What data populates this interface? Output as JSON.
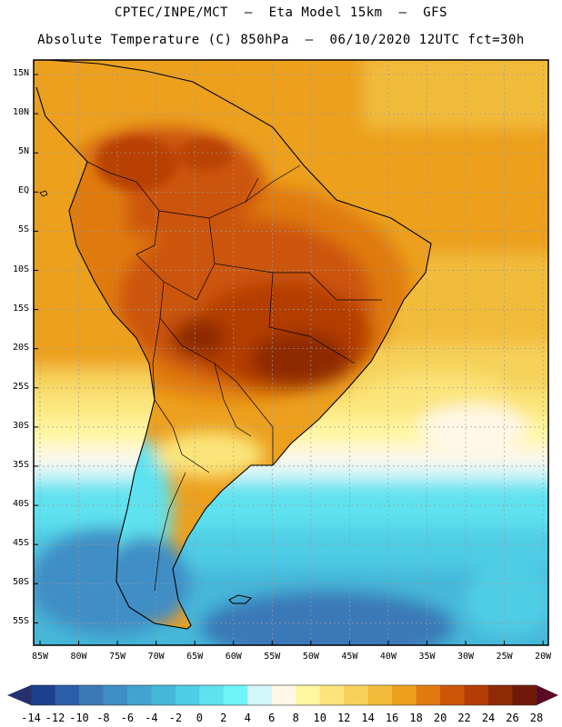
{
  "header": {
    "line1": "CPTEC/INPE/MCT  –  Eta Model 15km  –  GFS",
    "line2": "Absolute Temperature (C) 850hPa  –  06/10/2020 12UTC fct=30h"
  },
  "map": {
    "lat_labels": [
      "15N",
      "10N",
      "5N",
      "EQ",
      "5S",
      "10S",
      "15S",
      "20S",
      "25S",
      "30S",
      "35S",
      "40S",
      "45S",
      "50S",
      "55S"
    ],
    "lon_labels": [
      "85W",
      "80W",
      "75W",
      "70W",
      "65W",
      "60W",
      "55W",
      "50W",
      "45W",
      "40W",
      "35W",
      "30W",
      "25W",
      "20W"
    ],
    "grid": "dotted",
    "lat_range": [
      "16N",
      "57S"
    ],
    "lon_range": [
      "86W",
      "19W"
    ]
  },
  "colorbar": {
    "labels": [
      "-14",
      "-12",
      "-10",
      "-8",
      "-6",
      "-4",
      "-2",
      "0",
      "2",
      "4",
      "6",
      "8",
      "10",
      "12",
      "14",
      "16",
      "18",
      "20",
      "22",
      "24",
      "26",
      "28"
    ],
    "colors": [
      "#1c3f8e",
      "#2b5ea8",
      "#3a78b8",
      "#3f8ec6",
      "#42a3d0",
      "#45b7d9",
      "#4fcde5",
      "#5fe2ef",
      "#6ff5f8",
      "#d2f6fa",
      "#fff8e6",
      "#fff6a0",
      "#fbe57a",
      "#f6d15a",
      "#f2bc3a",
      "#eca01e",
      "#e07a10",
      "#cc5508",
      "#b43c06",
      "#8e2a06",
      "#70190a"
    ],
    "left_arrow_color": "#24316e",
    "right_arrow_color": "#5a0a22"
  }
}
